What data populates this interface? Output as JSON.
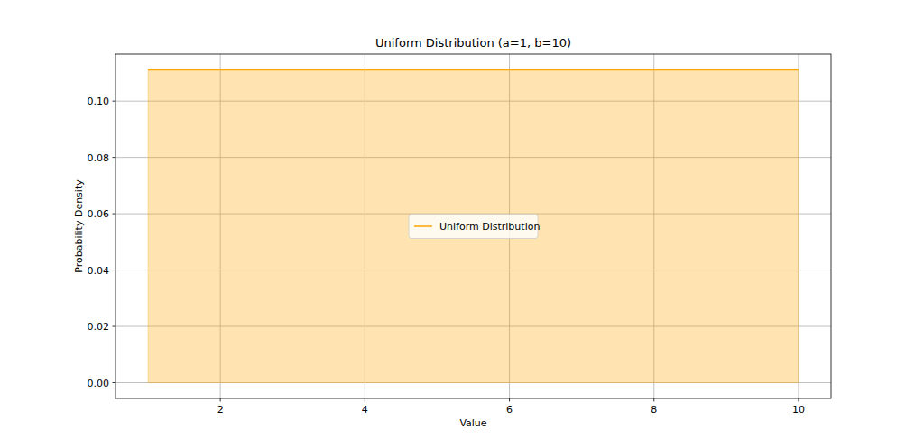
{
  "chart_data": {
    "type": "area",
    "title": "Uniform Distribution (a=1, b=10)",
    "x_label": "Value",
    "y_label": "Probability Density",
    "x": [
      1,
      10
    ],
    "series": [
      {
        "name": "Uniform Distribution",
        "color": "#ffa500",
        "values": [
          0.1111,
          0.1111
        ]
      }
    ],
    "xlim": [
      0.55,
      10.45
    ],
    "xticks": [
      2,
      4,
      6,
      8,
      10
    ],
    "ylim": [
      -0.0056,
      0.1167
    ],
    "yticks": [
      {
        "value": 0,
        "label": "0.00"
      },
      {
        "value": 0.02,
        "label": "0.02"
      },
      {
        "value": 0.04,
        "label": "0.04"
      },
      {
        "value": 0.06,
        "label": "0.06"
      },
      {
        "value": 0.08,
        "label": "0.08"
      },
      {
        "value": 0.1,
        "label": "0.10"
      }
    ],
    "grid": true,
    "legend": "center"
  }
}
